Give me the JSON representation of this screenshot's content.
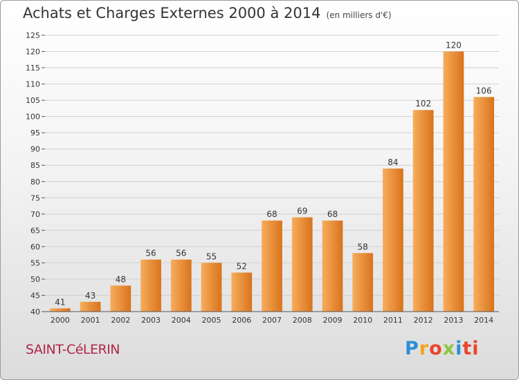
{
  "title": "Achats et Charges Externes 2000 à 2014",
  "subtitle": "(en milliers d'€)",
  "commune": "SAINT-CéLERIN",
  "logo": "Proxiti",
  "colors": {
    "bar_light": "#f5a24e",
    "bar_dark": "#d9731c",
    "commune": "#b0264a"
  },
  "chart_data": {
    "type": "bar",
    "categories": [
      "2000",
      "2001",
      "2002",
      "2003",
      "2004",
      "2005",
      "2006",
      "2007",
      "2008",
      "2009",
      "2010",
      "2011",
      "2012",
      "2013",
      "2014"
    ],
    "values": [
      41,
      43,
      48,
      56,
      56,
      55,
      52,
      68,
      69,
      68,
      58,
      84,
      102,
      120,
      106
    ],
    "ylim": [
      40,
      125
    ],
    "yticks": [
      40,
      45,
      50,
      55,
      60,
      65,
      70,
      75,
      80,
      85,
      90,
      95,
      100,
      105,
      110,
      115,
      120,
      125
    ],
    "grid": true,
    "xlabel": "",
    "ylabel": ""
  }
}
